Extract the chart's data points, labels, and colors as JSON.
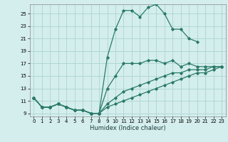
{
  "xlabel": "Humidex (Indice chaleur)",
  "background_color": "#d4eeed",
  "grid_color": "#afd8d5",
  "line_color": "#2a7a6a",
  "xlim": [
    -0.5,
    23.5
  ],
  "ylim": [
    8.5,
    26.5
  ],
  "yticks": [
    9,
    11,
    13,
    15,
    17,
    19,
    21,
    23,
    25
  ],
  "xticks": [
    0,
    1,
    2,
    3,
    4,
    5,
    6,
    7,
    8,
    9,
    10,
    11,
    12,
    13,
    14,
    15,
    16,
    17,
    18,
    19,
    20,
    21,
    22,
    23
  ],
  "lines": [
    {
      "x": [
        0,
        1,
        2,
        3,
        4,
        5,
        6,
        7,
        8,
        9,
        10,
        11,
        12,
        13,
        14,
        15,
        16,
        17,
        18,
        19,
        20
      ],
      "y": [
        11.5,
        10.0,
        10.0,
        10.5,
        10.0,
        9.5,
        9.5,
        9.0,
        9.0,
        18.0,
        22.5,
        25.5,
        25.5,
        24.5,
        26.0,
        26.5,
        25.0,
        22.5,
        22.5,
        21.0,
        20.5
      ]
    },
    {
      "x": [
        0,
        1,
        2,
        3,
        4,
        5,
        6,
        7,
        8,
        9,
        10,
        11,
        12,
        13,
        14,
        15,
        16,
        17,
        18,
        19,
        20,
        21,
        22,
        23
      ],
      "y": [
        11.5,
        10.0,
        10.0,
        10.5,
        10.0,
        9.5,
        9.5,
        9.0,
        9.0,
        13.0,
        15.0,
        17.0,
        17.0,
        17.0,
        17.5,
        17.5,
        17.0,
        17.5,
        16.5,
        17.0,
        16.5,
        16.5,
        16.5,
        16.5
      ]
    },
    {
      "x": [
        0,
        1,
        2,
        3,
        4,
        5,
        6,
        7,
        8,
        9,
        10,
        11,
        12,
        13,
        14,
        15,
        16,
        17,
        18,
        19,
        20,
        21,
        22,
        23
      ],
      "y": [
        11.5,
        10.0,
        10.0,
        10.5,
        10.0,
        9.5,
        9.5,
        9.0,
        9.0,
        10.5,
        11.5,
        12.5,
        13.0,
        13.5,
        14.0,
        14.5,
        15.0,
        15.5,
        15.5,
        16.0,
        16.0,
        16.0,
        16.5,
        16.5
      ]
    },
    {
      "x": [
        0,
        1,
        2,
        3,
        4,
        5,
        6,
        7,
        8,
        9,
        10,
        11,
        12,
        13,
        14,
        15,
        16,
        17,
        18,
        19,
        20,
        21,
        22,
        23
      ],
      "y": [
        11.5,
        10.0,
        10.0,
        10.5,
        10.0,
        9.5,
        9.5,
        9.0,
        9.0,
        10.0,
        10.5,
        11.0,
        11.5,
        12.0,
        12.5,
        13.0,
        13.5,
        14.0,
        14.5,
        15.0,
        15.5,
        15.5,
        16.0,
        16.5
      ]
    }
  ]
}
